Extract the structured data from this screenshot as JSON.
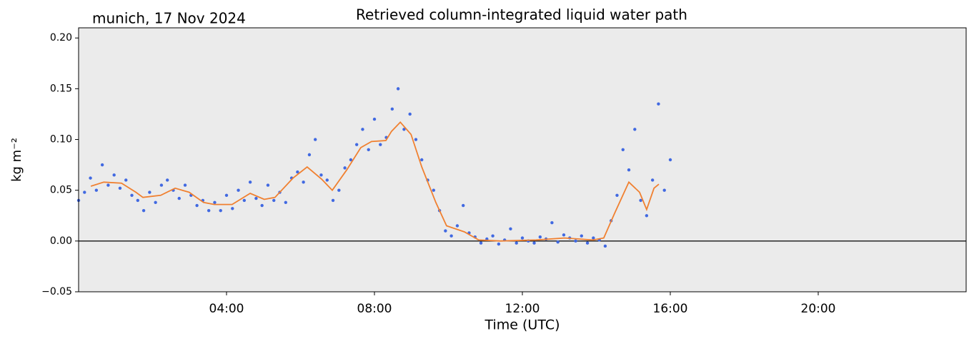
{
  "chart_data": {
    "type": "scatter",
    "title": "Retrieved column-integrated liquid water path",
    "subtitle": "munich, 17 Nov 2024",
    "xlabel": "Time (UTC)",
    "ylabel": "kg m⁻²",
    "xlim": [
      0,
      24
    ],
    "ylim": [
      -0.05,
      0.21
    ],
    "xticks": [
      {
        "value": 4,
        "label": "04:00"
      },
      {
        "value": 8,
        "label": "08:00"
      },
      {
        "value": 12,
        "label": "12:00"
      },
      {
        "value": 16,
        "label": "16:00"
      },
      {
        "value": 20,
        "label": "20:00"
      }
    ],
    "yticks": [
      {
        "value": -0.05,
        "label": "−0.05"
      },
      {
        "value": 0,
        "label": "0.00"
      },
      {
        "value": 0.05,
        "label": "0.05"
      },
      {
        "value": 0.1,
        "label": "0.10"
      },
      {
        "value": 0.15,
        "label": "0.15"
      },
      {
        "value": 0.2,
        "label": "0.20"
      }
    ],
    "hline": 0,
    "background": "#ebebeb",
    "series": [
      {
        "color": "#4169e1",
        "x": [
          0.0,
          0.16,
          0.32,
          0.48,
          0.64,
          0.8,
          0.96,
          1.12,
          1.28,
          1.44,
          1.6,
          1.76,
          1.92,
          2.08,
          2.24,
          2.4,
          2.56,
          2.72,
          2.88,
          3.04,
          3.2,
          3.36,
          3.52,
          3.68,
          3.84,
          4.0,
          4.16,
          4.32,
          4.48,
          4.64,
          4.8,
          4.96,
          5.12,
          5.28,
          5.44,
          5.6,
          5.76,
          5.92,
          6.08,
          6.24,
          6.4,
          6.56,
          6.72,
          6.88,
          7.04,
          7.2,
          7.36,
          7.52,
          7.68,
          7.84,
          8.0,
          8.16,
          8.32,
          8.48,
          8.64,
          8.8,
          8.96,
          9.12,
          9.28,
          9.44,
          9.6,
          9.76,
          9.92,
          10.08,
          10.24,
          10.4,
          10.56,
          10.72,
          10.88,
          11.04,
          11.2,
          11.36,
          11.52,
          11.68,
          11.84,
          12.0,
          12.16,
          12.32,
          12.48,
          12.64,
          12.8,
          12.96,
          13.12,
          13.28,
          13.44,
          13.6,
          13.76,
          13.92,
          14.08,
          14.24,
          14.4,
          14.56,
          14.72,
          14.88,
          15.04,
          15.2,
          15.36,
          15.52,
          15.68,
          15.84,
          16.0
        ],
        "values": [
          0.04,
          0.048,
          0.062,
          0.05,
          0.075,
          0.055,
          0.065,
          0.052,
          0.06,
          0.045,
          0.04,
          0.03,
          0.048,
          0.038,
          0.055,
          0.06,
          0.05,
          0.042,
          0.055,
          0.045,
          0.035,
          0.04,
          0.03,
          0.038,
          0.03,
          0.045,
          0.032,
          0.05,
          0.04,
          0.058,
          0.042,
          0.035,
          0.055,
          0.04,
          0.048,
          0.038,
          0.062,
          0.068,
          0.058,
          0.085,
          0.1,
          0.065,
          0.06,
          0.04,
          0.05,
          0.072,
          0.08,
          0.095,
          0.11,
          0.09,
          0.12,
          0.095,
          0.102,
          0.13,
          0.15,
          0.11,
          0.125,
          0.1,
          0.08,
          0.06,
          0.05,
          0.03,
          0.01,
          0.005,
          0.015,
          0.035,
          0.008,
          0.004,
          -0.002,
          0.002,
          0.005,
          -0.003,
          0.001,
          0.012,
          -0.002,
          0.003,
          0.0,
          -0.002,
          0.004,
          0.002,
          0.018,
          -0.001,
          0.006,
          0.003,
          0.0,
          0.005,
          -0.002,
          0.003,
          0.001,
          -0.005,
          0.02,
          0.045,
          0.09,
          0.07,
          0.11,
          0.04,
          0.025,
          0.06,
          0.135,
          0.05,
          0.08
        ]
      },
      {
        "type": "line",
        "color": "#f08030",
        "x": [
          0.33,
          0.68,
          1.16,
          1.55,
          1.74,
          2.22,
          2.61,
          2.99,
          3.38,
          3.67,
          4.15,
          4.64,
          5.02,
          5.31,
          5.8,
          6.18,
          6.57,
          6.86,
          7.25,
          7.63,
          7.92,
          8.31,
          8.46,
          8.7,
          8.99,
          9.28,
          9.66,
          9.95,
          10.43,
          10.82,
          11.4,
          12.37,
          13.14,
          13.91,
          14.2,
          14.49,
          14.88,
          15.17,
          15.36,
          15.56,
          15.69
        ],
        "values": [
          0.054,
          0.058,
          0.057,
          0.048,
          0.043,
          0.045,
          0.052,
          0.048,
          0.038,
          0.036,
          0.036,
          0.047,
          0.041,
          0.043,
          0.062,
          0.073,
          0.061,
          0.05,
          0.07,
          0.092,
          0.098,
          0.099,
          0.108,
          0.117,
          0.105,
          0.073,
          0.038,
          0.015,
          0.009,
          0.001,
          0.0,
          0.001,
          0.003,
          0.001,
          0.003,
          0.027,
          0.058,
          0.048,
          0.031,
          0.052,
          0.056
        ]
      }
    ]
  }
}
